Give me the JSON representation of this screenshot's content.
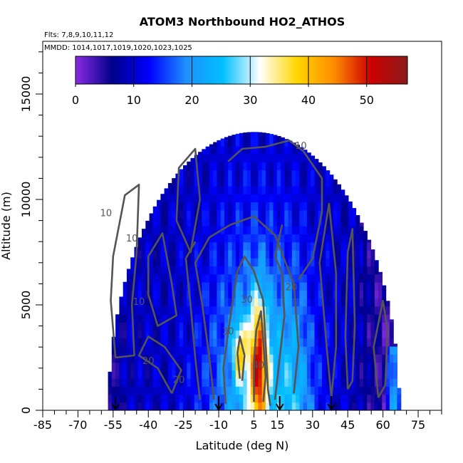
{
  "chart_data": {
    "type": "heatmap",
    "title": "ATOM3 Northbound HO2_ATHOS",
    "subtitle_flights": "Flts: 7,8,9,10,11,12",
    "subtitle_dates": "MMDD: 1014,1017,1019,1020,1023,1025",
    "xlabel": "Latitude (deg N)",
    "ylabel": "Altitude (m)",
    "xlim": [
      -85,
      85
    ],
    "ylim": [
      0,
      17500
    ],
    "x_ticks": [
      -85,
      -70,
      -55,
      -40,
      -25,
      -10,
      5,
      15,
      30,
      45,
      60,
      75
    ],
    "y_ticks": [
      0,
      5000,
      10000,
      15000
    ],
    "colorbar": {
      "range": [
        0,
        57
      ],
      "ticks": [
        0,
        10,
        20,
        30,
        40,
        50
      ],
      "colors": [
        "#8a2be2",
        "#00008b",
        "#0000ff",
        "#1e90ff",
        "#00bfff",
        "#ffffff",
        "#ffd700",
        "#ff8c00",
        "#cc0000",
        "#8b1a1a"
      ]
    },
    "arrows_latitude": [
      -54,
      -10,
      16,
      38
    ],
    "contour_labels": [
      {
        "text": "10",
        "lat": 25,
        "alt": 12400
      },
      {
        "text": "10",
        "lat": -58,
        "alt": 9200
      },
      {
        "text": "10",
        "lat": -47,
        "alt": 8000
      },
      {
        "text": "10",
        "lat": -44,
        "alt": 5000
      },
      {
        "text": "20",
        "lat": -40,
        "alt": 2200
      },
      {
        "text": "20",
        "lat": -27,
        "alt": 1300
      },
      {
        "text": "20",
        "lat": 21,
        "alt": 5700
      },
      {
        "text": "30",
        "lat": 2,
        "alt": 5100
      },
      {
        "text": "30",
        "lat": -6,
        "alt": 3600
      },
      {
        "text": "40",
        "lat": 7,
        "alt": 2000
      }
    ]
  }
}
